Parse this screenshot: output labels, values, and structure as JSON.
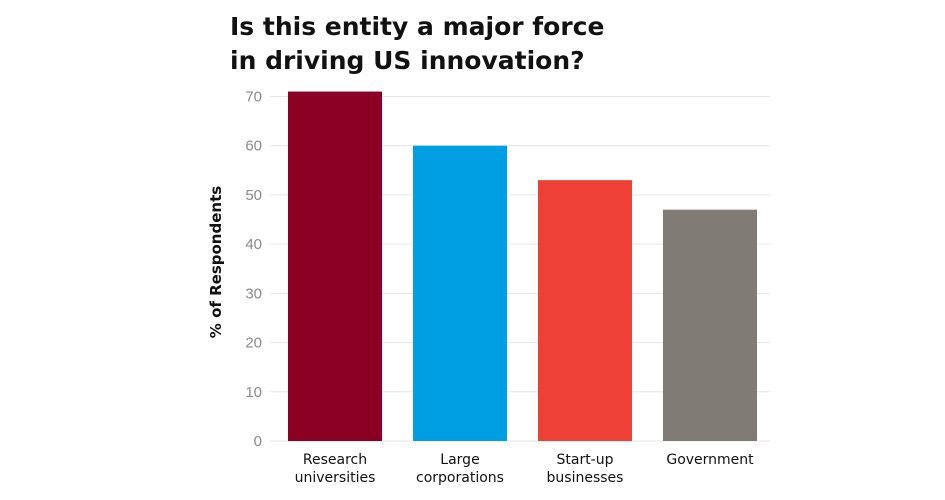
{
  "chart_data": {
    "type": "bar",
    "title": "Is this entity a major force\nin driving US innovation?",
    "xlabel": "",
    "ylabel": "% of Respondents",
    "ylim": [
      0,
      70
    ],
    "yticks": [
      0,
      10,
      20,
      30,
      40,
      50,
      60,
      70
    ],
    "grid": true,
    "categories": [
      "Research\nuniversities",
      "Large\ncorporations",
      "Start-up\nbusinesses",
      "Government"
    ],
    "values": [
      71,
      60,
      53,
      47
    ],
    "colors": [
      "#8b0022",
      "#009fe3",
      "#ee4035",
      "#807b74"
    ]
  }
}
